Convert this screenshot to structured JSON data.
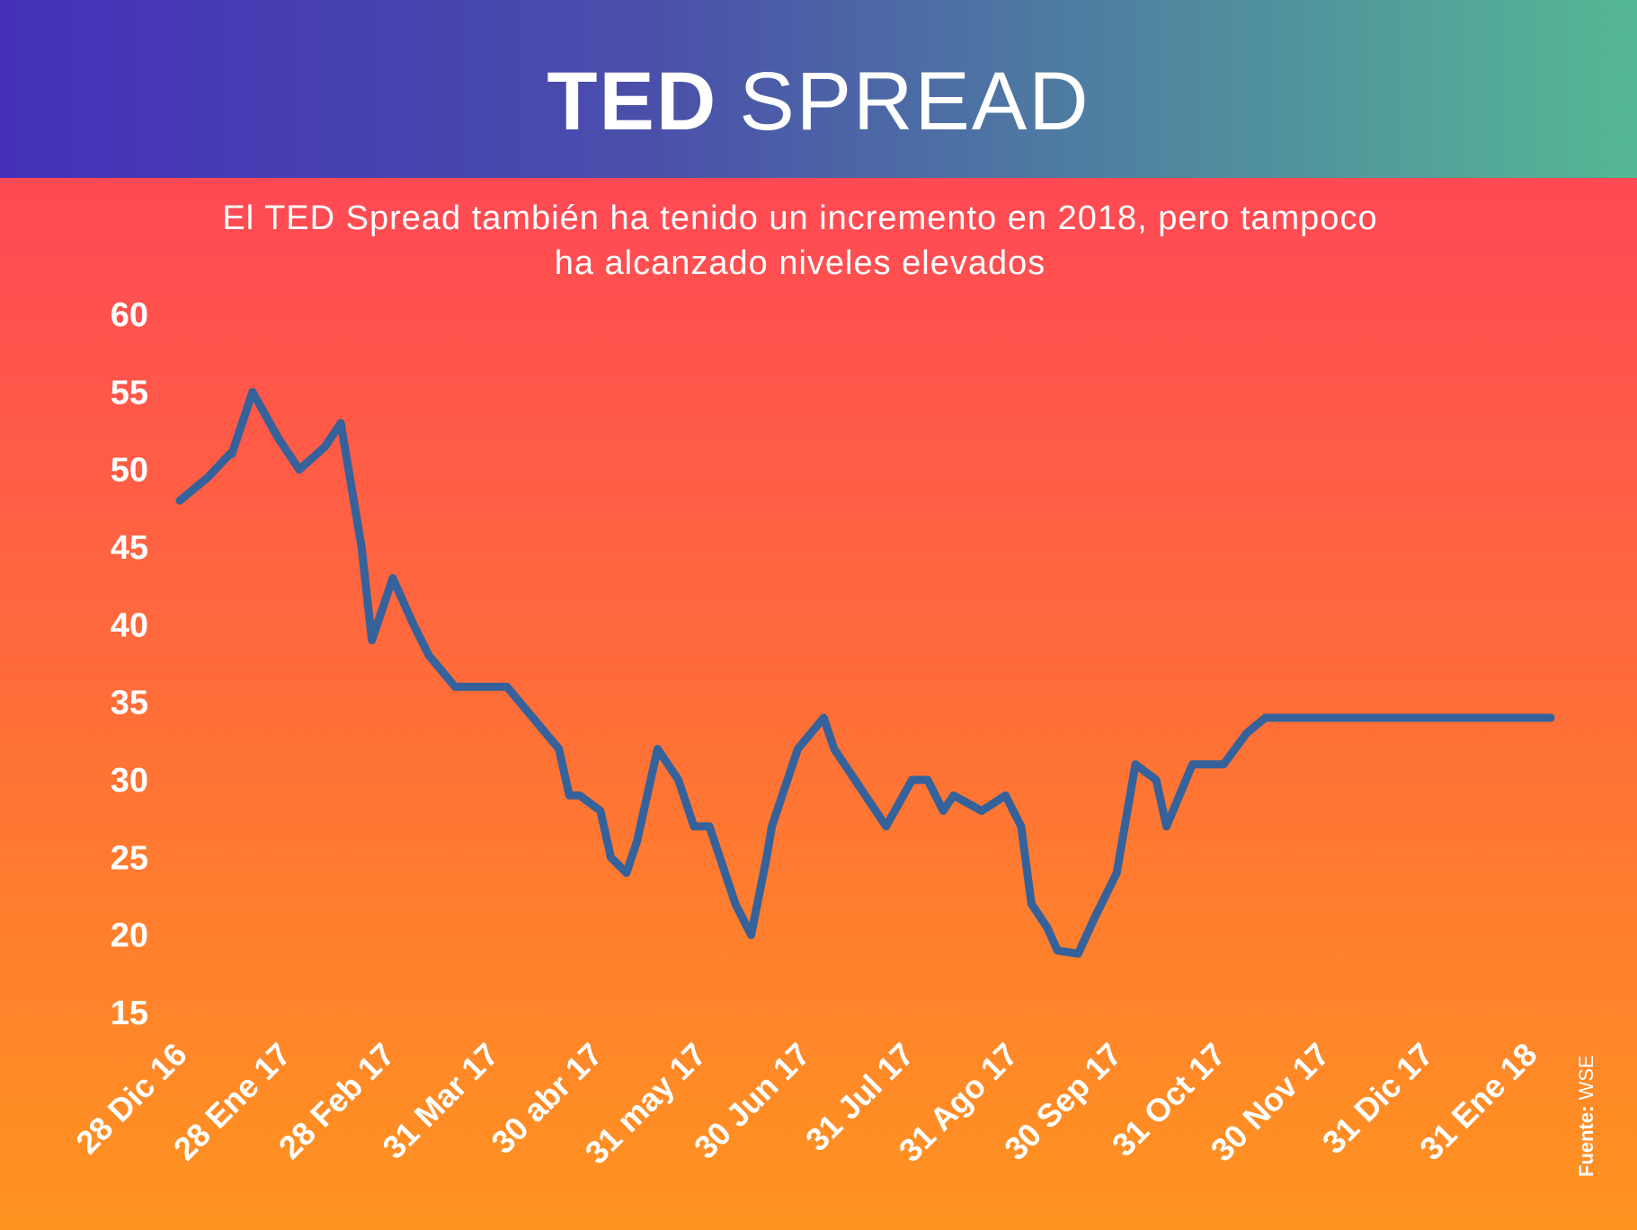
{
  "header": {
    "title_bold": "TED",
    "title_light": "SPREAD"
  },
  "subtitle": {
    "line1": "El TED Spread también ha tenido un incremento en 2018, pero tampoco",
    "line2": "ha alcanzado niveles elevados"
  },
  "source": {
    "label": "Fuente:",
    "value": "WSE"
  },
  "colors": {
    "line": "#35629a",
    "header_start": "#4430b8",
    "header_end": "#55b894"
  },
  "chart_data": {
    "type": "line",
    "title": "TED SPREAD",
    "xlabel": "",
    "ylabel": "",
    "ylim": [
      15,
      60
    ],
    "yticks": [
      60,
      55,
      50,
      45,
      40,
      35,
      30,
      25,
      20,
      15
    ],
    "xticks": [
      "28 Dic 16",
      "28 Ene 17",
      "28 Feb 17",
      "31 Mar 17",
      "30 abr 17",
      "31 may 17",
      "30 Jun 17",
      "31 Jul 17",
      "31 Ago 17",
      "30 Sep 17",
      "31 Oct 17",
      "30 Nov 17",
      "31 Dic 17",
      "31 Ene 18"
    ],
    "grid": false,
    "legend": "none",
    "series": [
      {
        "name": "TED Spread",
        "x": [
          0,
          0.27,
          0.48,
          0.5,
          0.7,
          0.95,
          1.15,
          1.4,
          1.55,
          1.75,
          1.85,
          2.05,
          2.25,
          2.4,
          2.65,
          2.82,
          3.15,
          3.65,
          3.75,
          3.85,
          4.05,
          4.15,
          4.3,
          4.4,
          4.6,
          4.8,
          4.95,
          5.1,
          5.35,
          5.5,
          5.65,
          5.7,
          5.95,
          6.2,
          6.3,
          6.8,
          7.05,
          7.2,
          7.35,
          7.45,
          7.72,
          7.95,
          8.1,
          8.2,
          8.35,
          8.45,
          8.65,
          8.8,
          9.02,
          9.2,
          9.4,
          9.5,
          9.75,
          10.05,
          10.27,
          10.45,
          10.65,
          10.87,
          11.1,
          11.2,
          11.3,
          11.5,
          11.75,
          11.85,
          12.05,
          12.3,
          12.45,
          12.55,
          12.7,
          12.85,
          13.05,
          13.2
        ],
        "values": [
          48,
          49.5,
          51,
          51,
          55,
          52,
          50,
          51.5,
          53,
          45,
          39,
          43,
          40,
          38,
          36,
          36,
          36,
          32,
          29,
          29,
          28,
          25,
          24,
          26,
          32,
          30,
          27,
          27,
          22,
          20,
          25,
          27,
          32,
          34,
          32,
          27,
          30,
          30,
          28,
          29,
          28,
          29,
          27,
          22,
          20.5,
          19,
          18.8,
          21,
          24,
          31,
          30,
          27,
          31,
          31,
          33,
          34,
          34,
          34,
          34,
          34,
          34,
          34,
          34,
          34,
          34,
          34,
          34,
          34,
          34,
          34,
          34,
          34
        ]
      }
    ]
  }
}
